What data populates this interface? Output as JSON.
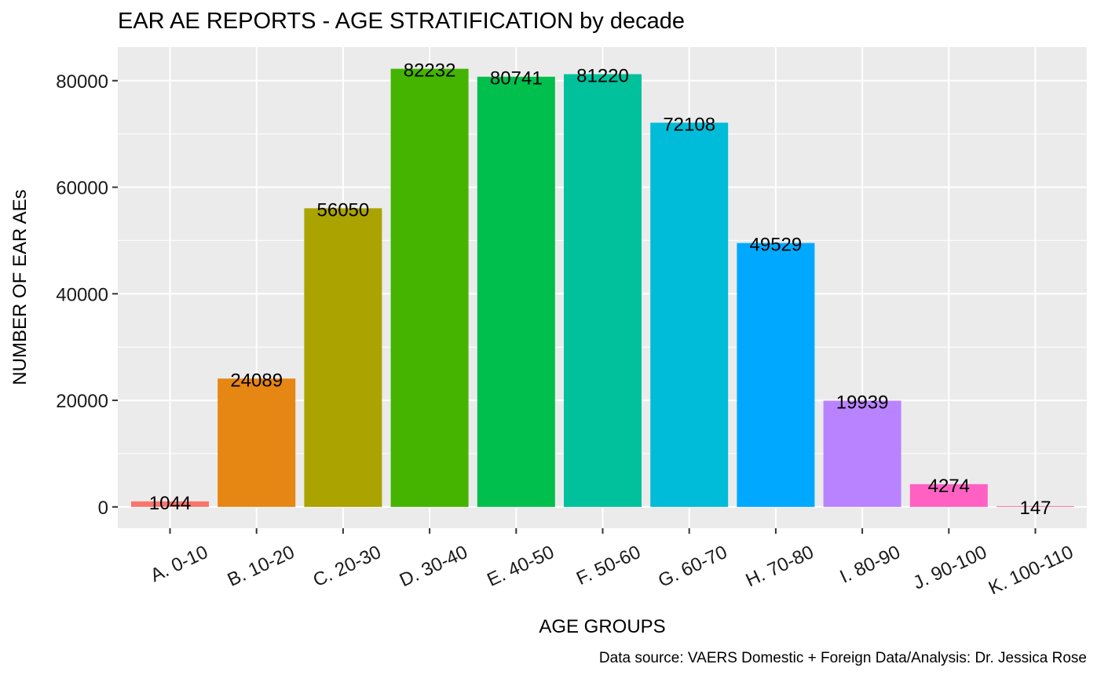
{
  "chart_data": {
    "type": "bar",
    "title": "EAR AE REPORTS - AGE STRATIFICATION by decade",
    "xlabel": "AGE GROUPS",
    "ylabel": "NUMBER OF EAR AEs",
    "caption": "Data source: VAERS Domestic + Foreign Data/Analysis: Dr. Jessica Rose",
    "categories": [
      "A. 0-10",
      "B. 10-20",
      "C. 20-30",
      "D. 30-40",
      "E. 40-50",
      "F. 50-60",
      "G. 60-70",
      "H. 70-80",
      "I. 80-90",
      "J. 90-100",
      "K. 100-110"
    ],
    "values": [
      1044,
      24089,
      56050,
      82232,
      80741,
      81220,
      72108,
      49529,
      19939,
      4274,
      147
    ],
    "colors": [
      "#F8766D",
      "#E18A00",
      "#BE9C00",
      "#8CAB00",
      "#24B700",
      "#00BE70",
      "#00C1AB",
      "#00BBDA",
      "#00ACFC",
      "#8B93FF",
      "#D575FE",
      "#F962DD"
    ],
    "bar_colors": [
      "#F8766D",
      "#E68613",
      "#ABA300",
      "#44B400",
      "#00BF4C",
      "#00C19C",
      "#00BCD8",
      "#00A9FF",
      "#B983FF",
      "#FF61C3",
      "#FF67A4"
    ],
    "yticks": [
      0,
      20000,
      40000,
      60000,
      80000
    ],
    "ytick_labels": [
      "0",
      "20000",
      "40000",
      "60000",
      "80000"
    ],
    "ylim": [
      -4000,
      86300
    ],
    "grid": true,
    "legend": "none"
  }
}
